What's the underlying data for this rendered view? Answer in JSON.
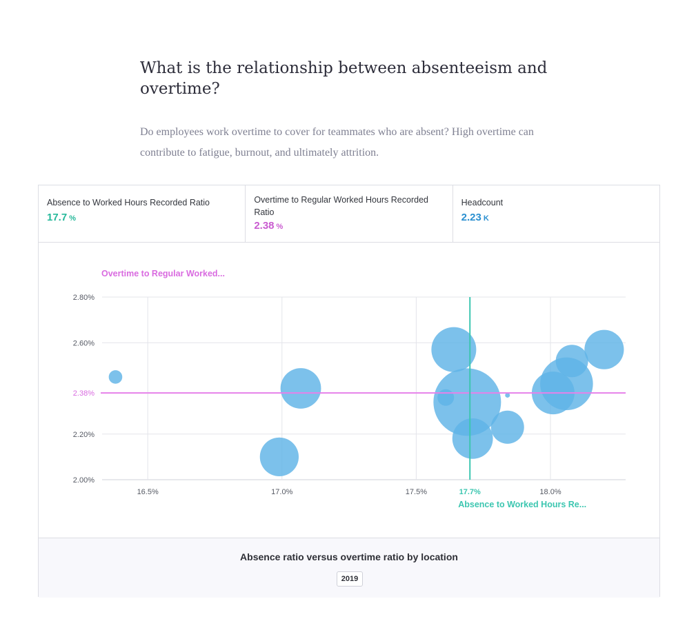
{
  "heading": "What is the relationship between absenteeism and overtime?",
  "intro": "Do employees work overtime to cover for teammates who are absent? High overtime can contribute to fatigue, burnout, and ultimately attrition.",
  "kpis": [
    {
      "label": "Absence to Worked Hours Recorded Ratio",
      "value": "17.7",
      "unit": "%",
      "color": "#26b89a"
    },
    {
      "label": "Overtime to Regular Worked Hours Recorded Ratio",
      "value": "2.38",
      "unit": "%",
      "color": "#c95bd0"
    },
    {
      "label": "Headcount",
      "value": "2.23",
      "unit": "K",
      "color": "#2a8fd0"
    }
  ],
  "colors": {
    "bubble": "#5fb3e6",
    "x_reference": "#3cc6b0",
    "y_reference": "#e681ea",
    "x_ref_text": "#3cc6b0",
    "y_ref_text": "#d96be0"
  },
  "footer": {
    "title": "Absence ratio versus overtime ratio by location",
    "year": "2019"
  },
  "chart_data": {
    "type": "scatter",
    "subtype": "bubble",
    "xlabel": "Absence to Worked Hours Re...",
    "ylabel": "Overtime to Regular Worked...",
    "xlim": [
      16.33,
      18.28
    ],
    "ylim": [
      2.0,
      2.8
    ],
    "x_ticks": [
      16.5,
      17.0,
      17.5,
      18.0
    ],
    "x_tick_labels": [
      "16.5%",
      "17.0%",
      "17.5%",
      "18.0%"
    ],
    "y_ticks": [
      2.0,
      2.2,
      2.6,
      2.8
    ],
    "y_tick_labels": [
      "2.00%",
      "2.20%",
      "2.60%",
      "2.80%"
    ],
    "grid": true,
    "reference_lines": {
      "x": {
        "value": 17.7,
        "label": "17.7%"
      },
      "y": {
        "value": 2.38,
        "label": "2.38%"
      }
    },
    "points": [
      {
        "x": 16.38,
        "y": 2.45,
        "size": 0.04
      },
      {
        "x": 16.99,
        "y": 2.1,
        "size": 0.33
      },
      {
        "x": 17.07,
        "y": 2.4,
        "size": 0.36
      },
      {
        "x": 17.64,
        "y": 2.57,
        "size": 0.44
      },
      {
        "x": 17.61,
        "y": 2.36,
        "size": 0.06
      },
      {
        "x": 17.69,
        "y": 2.34,
        "size": 1.0
      },
      {
        "x": 17.71,
        "y": 2.18,
        "size": 0.36
      },
      {
        "x": 17.84,
        "y": 2.23,
        "size": 0.24
      },
      {
        "x": 17.84,
        "y": 2.37,
        "size": 0.004
      },
      {
        "x": 18.01,
        "y": 2.38,
        "size": 0.4
      },
      {
        "x": 18.08,
        "y": 2.52,
        "size": 0.23
      },
      {
        "x": 18.06,
        "y": 2.42,
        "size": 0.61
      },
      {
        "x": 18.2,
        "y": 2.57,
        "size": 0.34
      }
    ]
  }
}
